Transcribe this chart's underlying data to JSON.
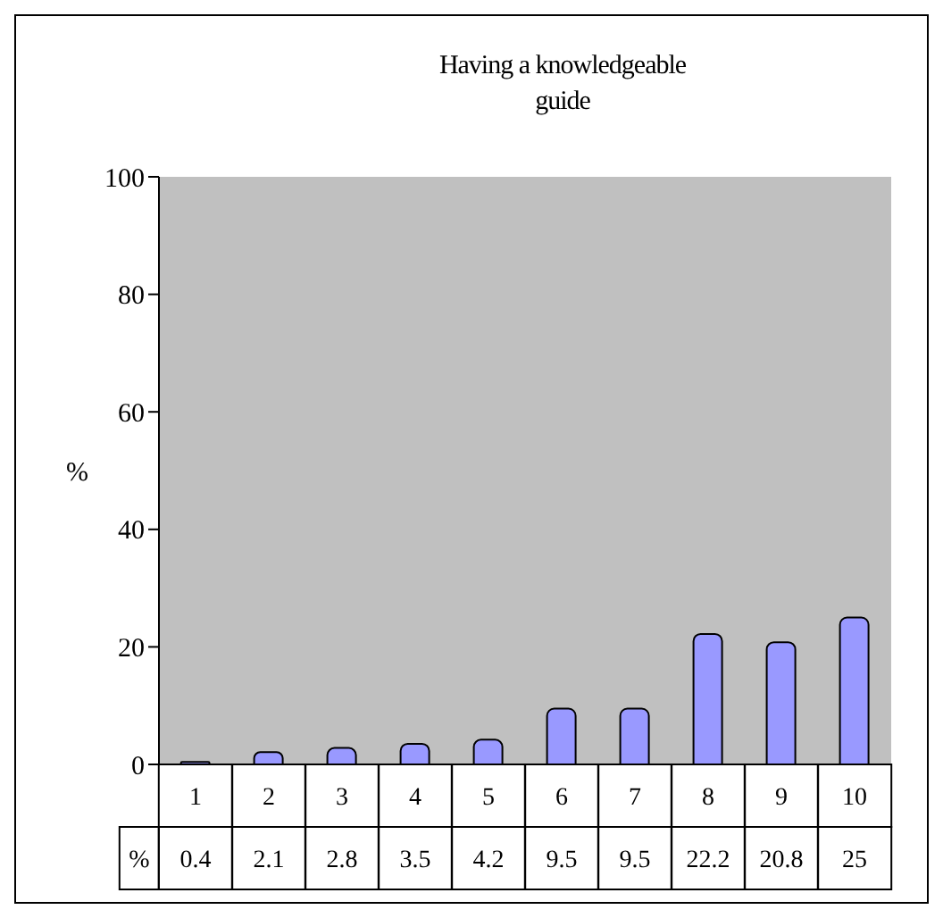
{
  "chart_data": {
    "type": "bar",
    "title": "Having a knowledgeable guide",
    "ylabel": "%",
    "categories": [
      "1",
      "2",
      "3",
      "4",
      "5",
      "6",
      "7",
      "8",
      "9",
      "10"
    ],
    "series": [
      {
        "name": "%",
        "color": "#9999ff",
        "values": [
          0.4,
          2.1,
          2.8,
          3.5,
          4.2,
          9.5,
          9.5,
          22.2,
          20.8,
          25
        ]
      }
    ],
    "ylim": [
      0,
      100
    ],
    "yticks": [
      0,
      20,
      40,
      60,
      80,
      100
    ],
    "grid": false,
    "legend": false,
    "data_labels": true
  }
}
